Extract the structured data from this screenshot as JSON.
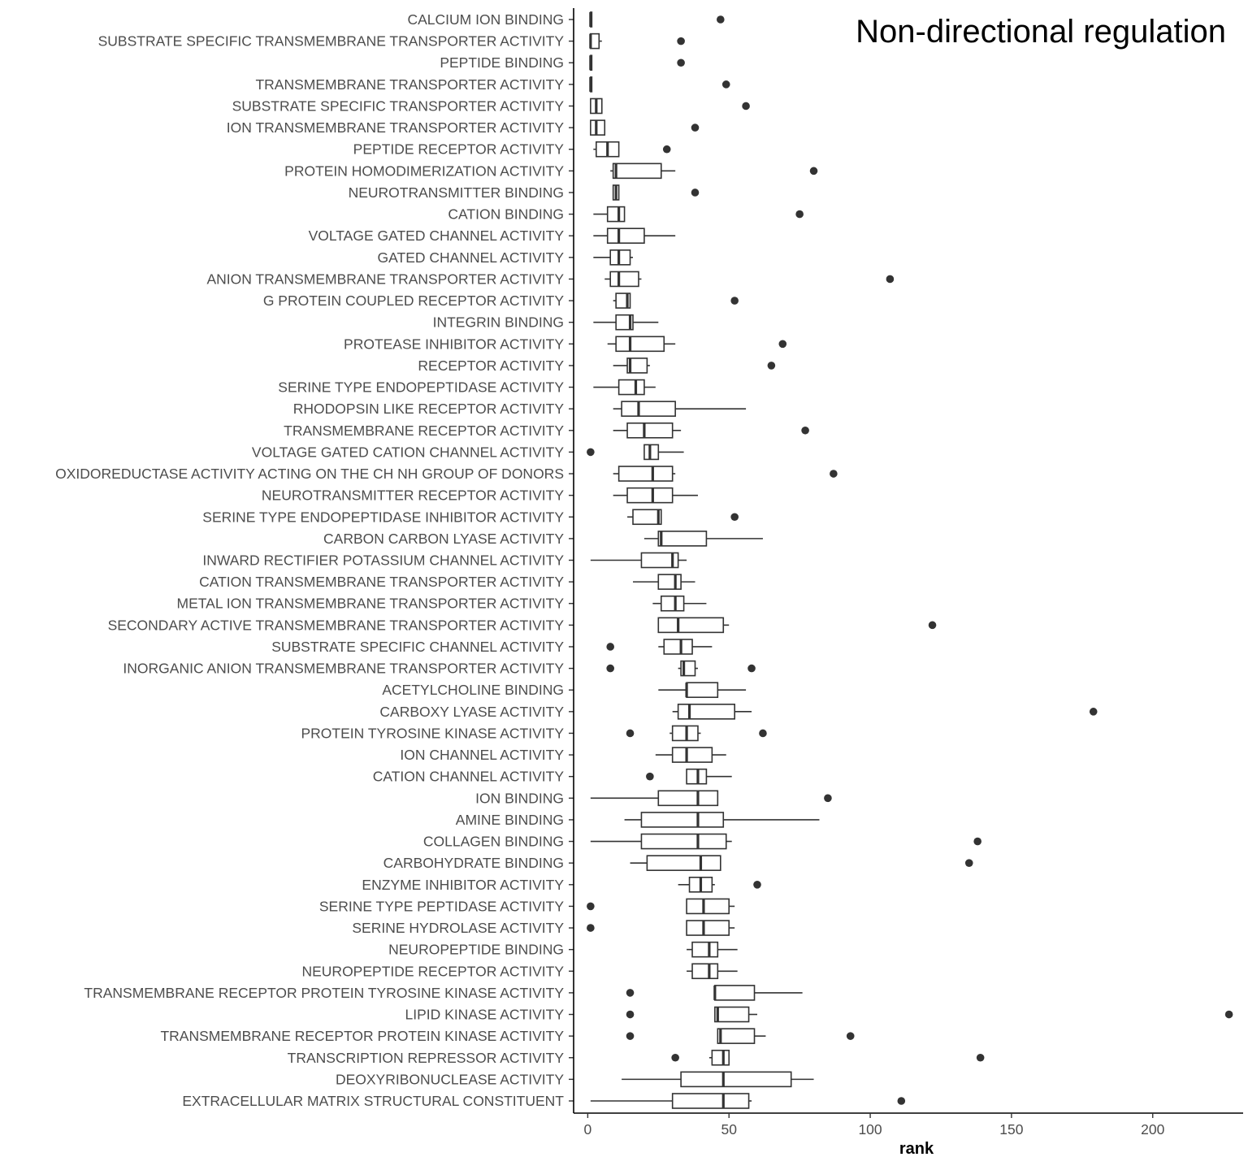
{
  "chart_data": {
    "type": "boxplot",
    "orientation": "horizontal",
    "title": "Non-directional regulation",
    "xlabel": "rank",
    "ylabel": "",
    "xlim": [
      -5,
      232
    ],
    "xticks": [
      0,
      50,
      100,
      150,
      200
    ],
    "grid": false,
    "legend": "none",
    "colors": {
      "box_stroke": "#333333",
      "box_fill": "#ffffff",
      "point": "#333333",
      "axis": "#000000",
      "label": "#4d4d4d"
    },
    "categories": [
      "CALCIUM ION BINDING",
      "SUBSTRATE SPECIFIC TRANSMEMBRANE TRANSPORTER ACTIVITY",
      "PEPTIDE BINDING",
      "TRANSMEMBRANE TRANSPORTER ACTIVITY",
      "SUBSTRATE SPECIFIC TRANSPORTER ACTIVITY",
      "ION TRANSMEMBRANE TRANSPORTER ACTIVITY",
      "PEPTIDE RECEPTOR ACTIVITY",
      "PROTEIN HOMODIMERIZATION ACTIVITY",
      "NEUROTRANSMITTER BINDING",
      "CATION BINDING",
      "VOLTAGE GATED CHANNEL ACTIVITY",
      "GATED CHANNEL ACTIVITY",
      "ANION TRANSMEMBRANE TRANSPORTER ACTIVITY",
      "G PROTEIN COUPLED RECEPTOR ACTIVITY",
      "INTEGRIN BINDING",
      "PROTEASE INHIBITOR ACTIVITY",
      "RECEPTOR ACTIVITY",
      "SERINE TYPE ENDOPEPTIDASE ACTIVITY",
      "RHODOPSIN LIKE RECEPTOR ACTIVITY",
      "TRANSMEMBRANE RECEPTOR ACTIVITY",
      "VOLTAGE GATED CATION CHANNEL ACTIVITY",
      "OXIDOREDUCTASE ACTIVITY ACTING ON THE CH NH GROUP OF DONORS",
      "NEUROTRANSMITTER RECEPTOR ACTIVITY",
      "SERINE TYPE ENDOPEPTIDASE INHIBITOR ACTIVITY",
      "CARBON CARBON LYASE ACTIVITY",
      "INWARD RECTIFIER POTASSIUM CHANNEL ACTIVITY",
      "CATION TRANSMEMBRANE TRANSPORTER ACTIVITY",
      "METAL ION TRANSMEMBRANE TRANSPORTER ACTIVITY",
      "SECONDARY ACTIVE TRANSMEMBRANE TRANSPORTER ACTIVITY",
      "SUBSTRATE SPECIFIC CHANNEL ACTIVITY",
      "INORGANIC ANION TRANSMEMBRANE TRANSPORTER ACTIVITY",
      "ACETYLCHOLINE BINDING",
      "CARBOXY LYASE ACTIVITY",
      "PROTEIN TYROSINE KINASE ACTIVITY",
      "ION CHANNEL ACTIVITY",
      "CATION CHANNEL ACTIVITY",
      "ION BINDING",
      "AMINE BINDING",
      "COLLAGEN BINDING",
      "CARBOHYDRATE BINDING",
      "ENZYME INHIBITOR ACTIVITY",
      "SERINE TYPE PEPTIDASE ACTIVITY",
      "SERINE HYDROLASE ACTIVITY",
      "NEUROPEPTIDE BINDING",
      "NEUROPEPTIDE RECEPTOR ACTIVITY",
      "TRANSMEMBRANE RECEPTOR PROTEIN TYROSINE KINASE ACTIVITY",
      "LIPID KINASE ACTIVITY",
      "TRANSMEMBRANE RECEPTOR PROTEIN KINASE ACTIVITY",
      "TRANSCRIPTION REPRESSOR ACTIVITY",
      "DEOXYRIBONUCLEASE ACTIVITY",
      "EXTRACELLULAR MATRIX STRUCTURAL CONSTITUENT"
    ],
    "boxes": [
      {
        "wlo": 1,
        "q1": 1,
        "med": 1,
        "q3": 1,
        "whi": 1,
        "outliers": [
          47
        ]
      },
      {
        "wlo": 1,
        "q1": 1,
        "med": 1,
        "q3": 4,
        "whi": 5,
        "outliers": [
          33
        ]
      },
      {
        "wlo": 1,
        "q1": 1,
        "med": 1,
        "q3": 1,
        "whi": 1,
        "outliers": [
          33
        ]
      },
      {
        "wlo": 1,
        "q1": 1,
        "med": 1,
        "q3": 1,
        "whi": 1,
        "outliers": [
          49
        ]
      },
      {
        "wlo": 1,
        "q1": 1,
        "med": 3,
        "q3": 5,
        "whi": 5,
        "outliers": [
          56
        ]
      },
      {
        "wlo": 1,
        "q1": 1,
        "med": 3,
        "q3": 6,
        "whi": 6,
        "outliers": [
          38
        ]
      },
      {
        "wlo": 2,
        "q1": 3,
        "med": 7,
        "q3": 11,
        "whi": 11,
        "outliers": [
          28
        ]
      },
      {
        "wlo": 8,
        "q1": 9,
        "med": 10,
        "q3": 26,
        "whi": 31,
        "outliers": [
          80
        ]
      },
      {
        "wlo": 9,
        "q1": 9,
        "med": 10,
        "q3": 11,
        "whi": 11,
        "outliers": [
          38
        ]
      },
      {
        "wlo": 2,
        "q1": 7,
        "med": 11,
        "q3": 13,
        "whi": 13,
        "outliers": [
          75
        ]
      },
      {
        "wlo": 2,
        "q1": 7,
        "med": 11,
        "q3": 20,
        "whi": 31,
        "outliers": []
      },
      {
        "wlo": 2,
        "q1": 8,
        "med": 11,
        "q3": 15,
        "whi": 16,
        "outliers": []
      },
      {
        "wlo": 6,
        "q1": 8,
        "med": 11,
        "q3": 18,
        "whi": 19,
        "outliers": [
          107
        ]
      },
      {
        "wlo": 9,
        "q1": 10,
        "med": 14,
        "q3": 15,
        "whi": 15,
        "outliers": [
          52
        ]
      },
      {
        "wlo": 2,
        "q1": 10,
        "med": 15,
        "q3": 16,
        "whi": 25,
        "outliers": []
      },
      {
        "wlo": 7,
        "q1": 10,
        "med": 15,
        "q3": 27,
        "whi": 31,
        "outliers": [
          69
        ]
      },
      {
        "wlo": 9,
        "q1": 14,
        "med": 15,
        "q3": 21,
        "whi": 22,
        "outliers": [
          65
        ]
      },
      {
        "wlo": 2,
        "q1": 11,
        "med": 17,
        "q3": 20,
        "whi": 24,
        "outliers": []
      },
      {
        "wlo": 9,
        "q1": 12,
        "med": 18,
        "q3": 31,
        "whi": 56,
        "outliers": []
      },
      {
        "wlo": 9,
        "q1": 14,
        "med": 20,
        "q3": 30,
        "whi": 33,
        "outliers": [
          77
        ]
      },
      {
        "wlo": 20,
        "q1": 20,
        "med": 22,
        "q3": 25,
        "whi": 34,
        "outliers": [
          1
        ]
      },
      {
        "wlo": 9,
        "q1": 11,
        "med": 23,
        "q3": 30,
        "whi": 31,
        "outliers": [
          87
        ]
      },
      {
        "wlo": 9,
        "q1": 14,
        "med": 23,
        "q3": 30,
        "whi": 39,
        "outliers": []
      },
      {
        "wlo": 14,
        "q1": 16,
        "med": 25,
        "q3": 26,
        "whi": 26,
        "outliers": [
          52
        ]
      },
      {
        "wlo": 20,
        "q1": 25,
        "med": 26,
        "q3": 42,
        "whi": 62,
        "outliers": []
      },
      {
        "wlo": 1,
        "q1": 19,
        "med": 30,
        "q3": 32,
        "whi": 35,
        "outliers": []
      },
      {
        "wlo": 16,
        "q1": 25,
        "med": 31,
        "q3": 33,
        "whi": 38,
        "outliers": []
      },
      {
        "wlo": 23,
        "q1": 26,
        "med": 31,
        "q3": 34,
        "whi": 42,
        "outliers": []
      },
      {
        "wlo": 25,
        "q1": 25,
        "med": 32,
        "q3": 48,
        "whi": 50,
        "outliers": [
          122
        ]
      },
      {
        "wlo": 25,
        "q1": 27,
        "med": 33,
        "q3": 37,
        "whi": 44,
        "outliers": [
          8
        ]
      },
      {
        "wlo": 32,
        "q1": 33,
        "med": 34,
        "q3": 38,
        "whi": 39,
        "outliers": [
          8,
          58
        ]
      },
      {
        "wlo": 25,
        "q1": 35,
        "med": 35,
        "q3": 46,
        "whi": 56,
        "outliers": []
      },
      {
        "wlo": 30,
        "q1": 32,
        "med": 36,
        "q3": 52,
        "whi": 58,
        "outliers": [
          179
        ]
      },
      {
        "wlo": 29,
        "q1": 30,
        "med": 35,
        "q3": 39,
        "whi": 40,
        "outliers": [
          15,
          62
        ]
      },
      {
        "wlo": 24,
        "q1": 30,
        "med": 35,
        "q3": 44,
        "whi": 49,
        "outliers": []
      },
      {
        "wlo": 35,
        "q1": 35,
        "med": 39,
        "q3": 42,
        "whi": 51,
        "outliers": [
          22
        ]
      },
      {
        "wlo": 1,
        "q1": 25,
        "med": 39,
        "q3": 46,
        "whi": 46,
        "outliers": [
          85
        ]
      },
      {
        "wlo": 13,
        "q1": 19,
        "med": 39,
        "q3": 48,
        "whi": 82,
        "outliers": []
      },
      {
        "wlo": 1,
        "q1": 19,
        "med": 39,
        "q3": 49,
        "whi": 51,
        "outliers": [
          138
        ]
      },
      {
        "wlo": 15,
        "q1": 21,
        "med": 40,
        "q3": 47,
        "whi": 47,
        "outliers": [
          135
        ]
      },
      {
        "wlo": 32,
        "q1": 36,
        "med": 40,
        "q3": 44,
        "whi": 45,
        "outliers": [
          60
        ]
      },
      {
        "wlo": 35,
        "q1": 35,
        "med": 41,
        "q3": 50,
        "whi": 52,
        "outliers": [
          1
        ]
      },
      {
        "wlo": 35,
        "q1": 35,
        "med": 41,
        "q3": 50,
        "whi": 52,
        "outliers": [
          1
        ]
      },
      {
        "wlo": 35,
        "q1": 37,
        "med": 43,
        "q3": 46,
        "whi": 53,
        "outliers": []
      },
      {
        "wlo": 35,
        "q1": 37,
        "med": 43,
        "q3": 46,
        "whi": 53,
        "outliers": []
      },
      {
        "wlo": 45,
        "q1": 45,
        "med": 45,
        "q3": 59,
        "whi": 76,
        "outliers": [
          15
        ]
      },
      {
        "wlo": 45,
        "q1": 45,
        "med": 46,
        "q3": 57,
        "whi": 60,
        "outliers": [
          15,
          227
        ]
      },
      {
        "wlo": 46,
        "q1": 46,
        "med": 47,
        "q3": 59,
        "whi": 63,
        "outliers": [
          15,
          93
        ]
      },
      {
        "wlo": 43,
        "q1": 44,
        "med": 48,
        "q3": 50,
        "whi": 50,
        "outliers": [
          31,
          139
        ]
      },
      {
        "wlo": 12,
        "q1": 33,
        "med": 48,
        "q3": 72,
        "whi": 80,
        "outliers": []
      },
      {
        "wlo": 1,
        "q1": 30,
        "med": 48,
        "q3": 57,
        "whi": 58,
        "outliers": [
          111
        ]
      }
    ]
  }
}
